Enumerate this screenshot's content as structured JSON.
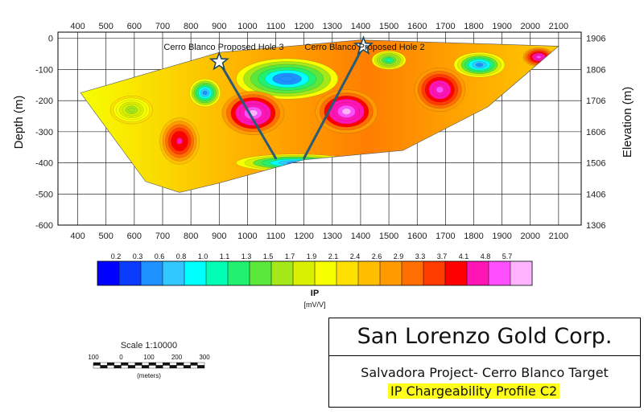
{
  "chart_data": {
    "type": "heatmap",
    "x_ticks": [
      400,
      500,
      600,
      700,
      800,
      900,
      1000,
      1100,
      1200,
      1300,
      1400,
      1500,
      1600,
      1700,
      1800,
      1900,
      2000,
      2100
    ],
    "depth_ticks": [
      0,
      -100,
      -200,
      -300,
      -400,
      -500,
      -600
    ],
    "elevation_ticks": [
      1906,
      1806,
      1706,
      1606,
      1506,
      1406,
      1306
    ],
    "xlim": [
      330,
      2180
    ],
    "ylim": [
      -600,
      20
    ],
    "ylabel_left": "Depth (m)",
    "ylabel_right": "Elevation (m)",
    "section_outline": [
      [
        410,
        -175
      ],
      [
        900,
        -45
      ],
      [
        1400,
        -5
      ],
      [
        2100,
        -25
      ],
      [
        1850,
        -220
      ],
      [
        1550,
        -360
      ],
      [
        1200,
        -390
      ],
      [
        900,
        -465
      ],
      [
        760,
        -495
      ],
      [
        640,
        -460
      ],
      [
        410,
        -175
      ]
    ],
    "anomalies": [
      {
        "x": 1140,
        "y": -130,
        "rx": 180,
        "ry": 65,
        "value": 0.3
      },
      {
        "x": 850,
        "y": -175,
        "rx": 55,
        "ry": 45,
        "value": 0.4
      },
      {
        "x": 1820,
        "y": -85,
        "rx": 90,
        "ry": 40,
        "value": 0.5
      },
      {
        "x": 1500,
        "y": -70,
        "rx": 60,
        "ry": 30,
        "value": 1.0
      },
      {
        "x": 1170,
        "y": -400,
        "rx": 210,
        "ry": 28,
        "value": 0.5
      },
      {
        "x": 1020,
        "y": -240,
        "rx": 110,
        "ry": 70,
        "value": 5.7
      },
      {
        "x": 1350,
        "y": -235,
        "rx": 110,
        "ry": 70,
        "value": 5.7
      },
      {
        "x": 1680,
        "y": -165,
        "rx": 90,
        "ry": 70,
        "value": 5.0
      },
      {
        "x": 760,
        "y": -330,
        "rx": 70,
        "ry": 75,
        "value": 4.3
      },
      {
        "x": 2030,
        "y": -60,
        "rx": 55,
        "ry": 30,
        "value": 5.0
      },
      {
        "x": 590,
        "y": -230,
        "rx": 75,
        "ry": 45,
        "value": 1.5
      }
    ],
    "drill_holes": [
      {
        "name": "Cerro Blanco Proposed Hole 3",
        "collar": [
          900,
          -75
        ],
        "toe": [
          1100,
          -385
        ]
      },
      {
        "name": "Cerro Blanco Proposed Hole 2",
        "collar": [
          1410,
          -25
        ],
        "toe": [
          1200,
          -385
        ]
      }
    ],
    "colorbar": {
      "title": "IP",
      "units": "[mV/V]",
      "labels": [
        "0.2",
        "0.3",
        "0.6",
        "0.8",
        "1.0",
        "1.1",
        "1.3",
        "1.5",
        "1.7",
        "1.9",
        "2.1",
        "2.4",
        "2.6",
        "2.9",
        "3.3",
        "3.7",
        "4.1",
        "4.8",
        "5.7"
      ],
      "colors": [
        "#0000ff",
        "#0a3cff",
        "#1e90ff",
        "#33c7ff",
        "#00ffff",
        "#00ffb4",
        "#22f06e",
        "#59e83b",
        "#a4e81a",
        "#d9f000",
        "#f7ff00",
        "#ffe000",
        "#ffbf00",
        "#ff9a00",
        "#ff6e00",
        "#ff3b00",
        "#ff0000",
        "#ff14b5",
        "#ff4fff",
        "#ffb3ff"
      ]
    },
    "scale": {
      "label": "Scale 1:10000",
      "ticks": [
        "100",
        "0",
        "100",
        "200",
        "300"
      ],
      "units": "(meters)"
    }
  },
  "titlebox": {
    "company": "San Lorenzo Gold Corp.",
    "project": "Salvadora Project- Cerro Blanco Target",
    "profile": "IP Chargeability Profile C2"
  }
}
